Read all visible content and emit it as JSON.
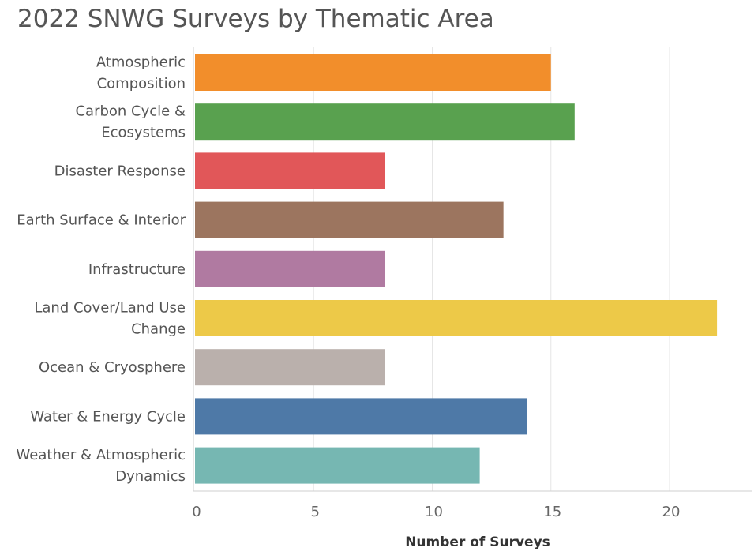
{
  "chart_data": {
    "type": "bar",
    "orientation": "horizontal",
    "title": "2022 SNWG Surveys by Thematic Area",
    "xlabel": "Number of Surveys",
    "ylabel": "",
    "xlim": [
      0,
      23.5
    ],
    "xticks": [
      0,
      5,
      10,
      15,
      20
    ],
    "grid": true,
    "categories": [
      [
        "Atmospheric",
        "Composition"
      ],
      [
        "Carbon Cycle &",
        "Ecosystems"
      ],
      [
        "Disaster Response"
      ],
      [
        "Earth Surface & Interior"
      ],
      [
        "Infrastructure"
      ],
      [
        "Land Cover/Land Use",
        "Change"
      ],
      [
        "Ocean & Cryosphere"
      ],
      [
        "Water & Energy Cycle"
      ],
      [
        "Weather & Atmospheric",
        "Dynamics"
      ]
    ],
    "values": [
      15,
      16,
      8,
      13,
      8,
      22,
      8,
      14,
      12
    ],
    "colors": [
      "#F28E2B",
      "#59A14F",
      "#E15759",
      "#9C755F",
      "#B07AA1",
      "#EDC948",
      "#BAB0AC",
      "#4E79A7",
      "#76B7B2"
    ]
  }
}
